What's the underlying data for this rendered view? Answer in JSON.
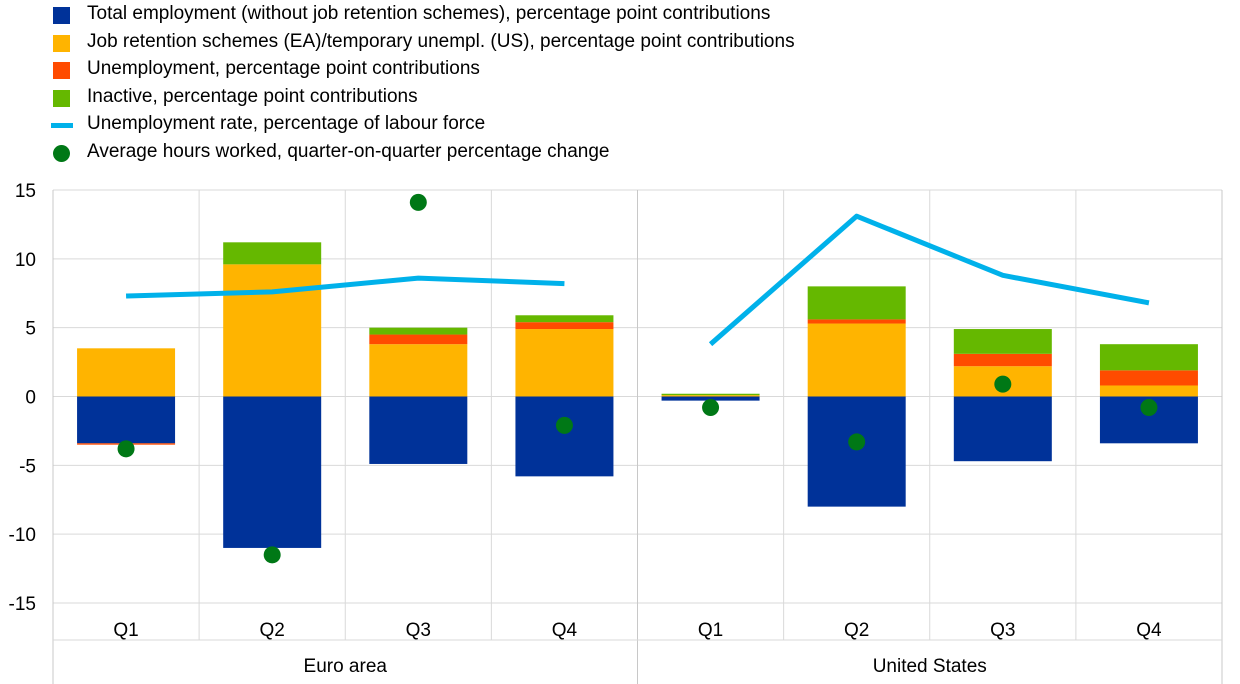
{
  "colors": {
    "total_employment": "#003299",
    "job_retention": "#FFB400",
    "unemployment": "#FF4B00",
    "inactive": "#65B800",
    "unemployment_rate": "#00B1EA",
    "hours_worked": "#007816",
    "grid": "#d9d9d9"
  },
  "chart_data": {
    "type": "bar",
    "stacked": true,
    "groups": [
      {
        "label": "Euro area",
        "categories": [
          "Q1",
          "Q2",
          "Q3",
          "Q4"
        ]
      },
      {
        "label": "United States",
        "categories": [
          "Q1",
          "Q2",
          "Q3",
          "Q4"
        ]
      }
    ],
    "ylim": [
      -15,
      15
    ],
    "yticks": [
      15,
      10,
      5,
      0,
      -5,
      -10,
      -15
    ],
    "grid": true,
    "legend_position": "top",
    "series": [
      {
        "key": "total_employment",
        "name": "Total employment (without job retention schemes), percentage point contributions",
        "type": "bar",
        "values": [
          -3.4,
          -11.0,
          -4.9,
          -5.8,
          -0.3,
          -8.0,
          -4.7,
          -3.4
        ]
      },
      {
        "key": "job_retention",
        "name": "Job retention schemes (EA)/temporary unempl. (US), percentage point contributions",
        "type": "bar",
        "values": [
          3.5,
          9.6,
          3.8,
          4.9,
          0.1,
          5.3,
          2.2,
          0.8
        ]
      },
      {
        "key": "unemployment",
        "name": "Unemployment, percentage point contributions",
        "type": "bar",
        "values": [
          -0.1,
          0.0,
          0.7,
          0.5,
          0.0,
          0.3,
          0.9,
          1.1
        ]
      },
      {
        "key": "inactive",
        "name": "Inactive, percentage point contributions",
        "type": "bar",
        "values": [
          0.0,
          1.6,
          0.5,
          0.5,
          0.1,
          2.4,
          1.8,
          1.9
        ]
      },
      {
        "key": "unemployment_rate",
        "name": "Unemployment rate, percentage of labour force",
        "type": "line",
        "values": [
          7.3,
          7.6,
          8.6,
          8.2,
          3.8,
          13.1,
          8.8,
          6.8
        ]
      },
      {
        "key": "hours_worked",
        "name": "Average hours worked, quarter-on-quarter percentage change",
        "type": "scatter",
        "values": [
          -3.8,
          -11.5,
          14.1,
          -2.1,
          -0.8,
          -3.3,
          0.9,
          -0.8
        ]
      }
    ]
  }
}
